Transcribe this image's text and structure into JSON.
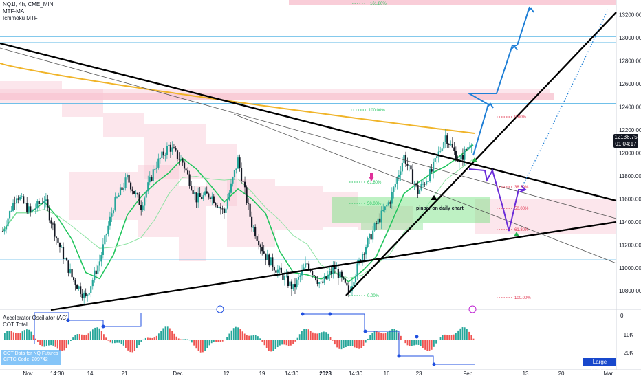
{
  "header": {
    "symbol_line": "NQ1!, 4h, CME_MINI",
    "indicators": [
      "MTF-MA",
      "Ichimoku MTF"
    ]
  },
  "oscillator": {
    "title": "Accelerator Oscillator (AC)",
    "subtitle": "COT Total",
    "cot_label_1": "COT Data for NQ Futures",
    "cot_label_2": "CFTC Code: 209742",
    "button": "Large Traders"
  },
  "price_tag": {
    "price": "12136.75",
    "countdown": "01:04:17"
  },
  "chart_data": {
    "type": "line",
    "title": "NQ1!, 4h, CME_MINI",
    "xlabel": "",
    "ylabel": "",
    "x_ticks": [
      "Nov",
      "14:30",
      "14",
      "21",
      "Dec",
      "12",
      "19",
      "14:30",
      "2023",
      "14:30",
      "16",
      "23",
      "Feb",
      "13",
      "20",
      "Mar"
    ],
    "y_ticks": [
      10800,
      11000,
      11200,
      11400,
      11600,
      11800,
      12000,
      12200,
      12400,
      12600,
      12800,
      13000,
      13200
    ],
    "ylim": [
      10640,
      13330
    ],
    "osc_ticks": [
      "0",
      "−10K",
      "−20K"
    ],
    "price_line_points": [
      11320,
      11640,
      11480,
      11600,
      11220,
      10920,
      10740,
      11060,
      11540,
      11780,
      11540,
      11880,
      12060,
      11920,
      11600,
      11640,
      11480,
      11940,
      11380,
      11100,
      10960,
      10820,
      11040,
      10850,
      11000,
      10790,
      11130,
      11380,
      11590,
      11970,
      11660,
      11840,
      12150,
      11920,
      12140
    ],
    "fib_levels": [
      {
        "label": "100.00%",
        "value": 12360
      },
      {
        "label": "61.80%",
        "value": 11780
      },
      {
        "label": "50.00%",
        "value": 11600
      },
      {
        "label": "0.00%",
        "value": 10760
      }
    ],
    "projection_fib_levels": [
      {
        "label": "161.80%",
        "value": 13320
      },
      {
        "label": "0.00%",
        "value": 12300
      },
      {
        "label": "38.20%",
        "value": 11760
      },
      {
        "label": "50.00%",
        "value": 11590
      },
      {
        "label": "61.80%",
        "value": 11290
      },
      {
        "label": "100.00%",
        "value": 10760
      }
    ],
    "horizontal_levels": [
      13010,
      12960,
      12430,
      11070
    ],
    "annotation": "pinbar on daily chart",
    "colors": {
      "up_candle": "#26a69a",
      "down_candle": "#131722",
      "ma_green": "#22c55e",
      "ma_orange": "#f0b429",
      "cloud": "#f8c8d4",
      "projection_up": "#1f7fd6",
      "projection_down": "#6a2cd8",
      "fib_green": "#22c55e",
      "fib_red": "#e0304a",
      "level_line": "#5bb7e6"
    }
  }
}
